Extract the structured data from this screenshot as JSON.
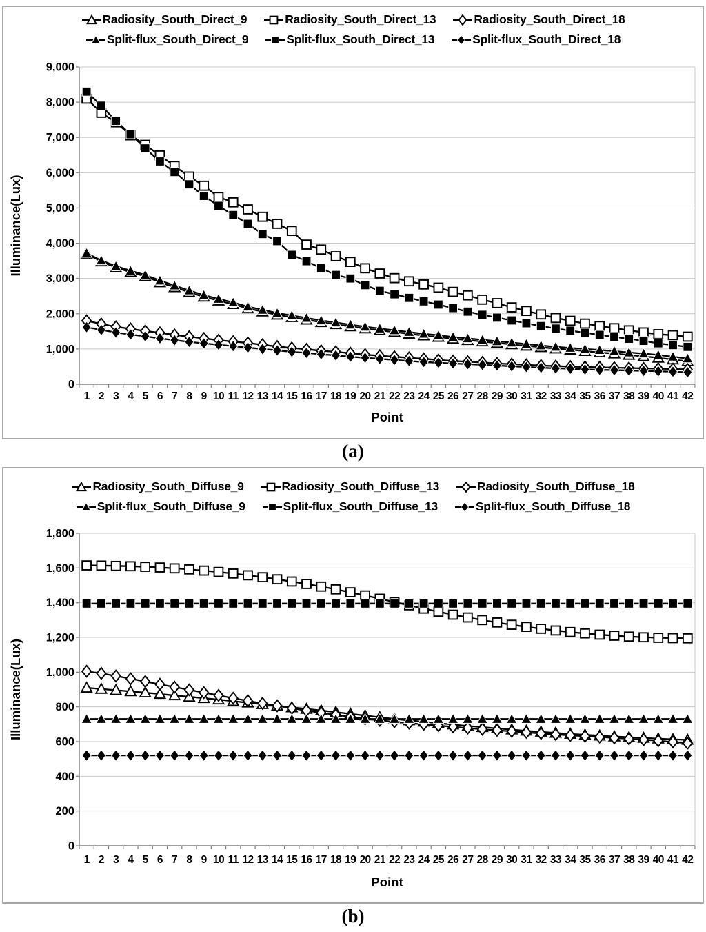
{
  "page": {
    "background": "#ffffff"
  },
  "colors": {
    "series_line": "#000000",
    "grid": "#c8c8c8",
    "axis": "#808080",
    "panel_border": "#a8a8a8",
    "text": "#000000",
    "marker_open_fill": "#ffffff",
    "marker_filled_fill": "#000000"
  },
  "chart_data": [
    {
      "id": "a",
      "caption": "(a)",
      "type": "line",
      "xlabel": "Point",
      "ylabel": "Illuminance(Lux)",
      "ylim": [
        0,
        9000
      ],
      "ytick_step": 1000,
      "ytick_labels": [
        "0",
        "1,000",
        "2,000",
        "3,000",
        "4,000",
        "5,000",
        "6,000",
        "7,000",
        "8,000",
        "9,000"
      ],
      "x_labels": [
        "1",
        "2",
        "3",
        "4",
        "5",
        "6",
        "7",
        "8",
        "9",
        "10",
        "11",
        "12",
        "13",
        "14",
        "15",
        "16",
        "17",
        "18",
        "19",
        "20",
        "21",
        "22",
        "23",
        "24",
        "25",
        "26",
        "27",
        "28",
        "29",
        "30",
        "31",
        "32",
        "33",
        "34",
        "35",
        "36",
        "37",
        "38",
        "39",
        "40",
        "41",
        "42"
      ],
      "grid": "horizontal",
      "legend_position": "top",
      "series": [
        {
          "name": "Radiosity_South_Direct_9",
          "marker": "triangle-open",
          "values": [
            3700,
            3480,
            3310,
            3180,
            3060,
            2890,
            2750,
            2610,
            2480,
            2370,
            2270,
            2150,
            2060,
            1970,
            1900,
            1830,
            1760,
            1700,
            1640,
            1580,
            1530,
            1480,
            1430,
            1380,
            1340,
            1290,
            1250,
            1210,
            1170,
            1130,
            1090,
            1050,
            1010,
            980,
            940,
            900,
            870,
            830,
            790,
            750,
            700,
            650
          ]
        },
        {
          "name": "Radiosity_South_Direct_13",
          "marker": "square-open",
          "values": [
            8100,
            7700,
            7430,
            7060,
            6790,
            6490,
            6190,
            5890,
            5630,
            5310,
            5160,
            4960,
            4750,
            4550,
            4350,
            3960,
            3820,
            3630,
            3470,
            3290,
            3140,
            3010,
            2920,
            2830,
            2740,
            2620,
            2520,
            2400,
            2300,
            2180,
            2080,
            1980,
            1880,
            1800,
            1720,
            1650,
            1590,
            1530,
            1470,
            1420,
            1390,
            1350
          ]
        },
        {
          "name": "Radiosity_South_Direct_18",
          "marker": "diamond-open",
          "values": [
            1800,
            1710,
            1630,
            1570,
            1510,
            1460,
            1400,
            1350,
            1300,
            1250,
            1210,
            1170,
            1120,
            1070,
            1030,
            990,
            950,
            920,
            880,
            840,
            810,
            780,
            750,
            720,
            690,
            660,
            640,
            620,
            590,
            570,
            550,
            530,
            515,
            500,
            490,
            480,
            470,
            460,
            450,
            440,
            430,
            420
          ]
        },
        {
          "name": "Split-flux_South_Direct_9",
          "marker": "triangle-filled",
          "values": [
            3720,
            3510,
            3350,
            3220,
            3100,
            2940,
            2800,
            2660,
            2530,
            2420,
            2320,
            2200,
            2110,
            2020,
            1950,
            1880,
            1810,
            1750,
            1690,
            1630,
            1580,
            1530,
            1480,
            1430,
            1390,
            1340,
            1300,
            1260,
            1220,
            1180,
            1140,
            1100,
            1060,
            1030,
            1000,
            970,
            940,
            900,
            870,
            830,
            780,
            730
          ]
        },
        {
          "name": "Split-flux_South_Direct_13",
          "marker": "square-filled",
          "values": [
            8300,
            7900,
            7470,
            7090,
            6690,
            6320,
            6020,
            5670,
            5340,
            5060,
            4800,
            4550,
            4260,
            4060,
            3670,
            3490,
            3290,
            3100,
            3000,
            2810,
            2650,
            2550,
            2450,
            2350,
            2260,
            2160,
            2060,
            1970,
            1890,
            1810,
            1730,
            1650,
            1580,
            1520,
            1460,
            1400,
            1340,
            1290,
            1230,
            1160,
            1110,
            1060
          ]
        },
        {
          "name": "Split-flux_South_Direct_18",
          "marker": "diamond-filled",
          "values": [
            1620,
            1540,
            1470,
            1410,
            1360,
            1300,
            1250,
            1200,
            1160,
            1120,
            1080,
            1040,
            1000,
            960,
            920,
            890,
            850,
            820,
            780,
            750,
            720,
            690,
            660,
            630,
            610,
            590,
            570,
            550,
            530,
            510,
            490,
            470,
            450,
            440,
            420,
            410,
            400,
            390,
            380,
            370,
            355,
            340
          ]
        }
      ]
    },
    {
      "id": "b",
      "caption": "(b)",
      "type": "line",
      "xlabel": "Point",
      "ylabel": "Illuminance(Lux)",
      "ylim": [
        0,
        1800
      ],
      "ytick_step": 200,
      "ytick_labels": [
        "0",
        "200",
        "400",
        "600",
        "800",
        "1,000",
        "1,200",
        "1,400",
        "1,600",
        "1,800"
      ],
      "x_labels": [
        "1",
        "2",
        "3",
        "4",
        "5",
        "6",
        "7",
        "8",
        "9",
        "10",
        "11",
        "12",
        "13",
        "14",
        "15",
        "16",
        "17",
        "18",
        "19",
        "20",
        "21",
        "22",
        "23",
        "24",
        "25",
        "26",
        "27",
        "28",
        "29",
        "30",
        "31",
        "32",
        "33",
        "34",
        "35",
        "36",
        "37",
        "38",
        "39",
        "40",
        "41",
        "42"
      ],
      "grid": "horizontal",
      "legend_position": "top",
      "series": [
        {
          "name": "Radiosity_South_Diffuse_9",
          "marker": "triangle-open",
          "values": [
            910,
            903,
            896,
            889,
            882,
            874,
            866,
            858,
            850,
            842,
            833,
            824,
            815,
            806,
            797,
            788,
            779,
            770,
            760,
            750,
            740,
            730,
            722,
            714,
            706,
            698,
            690,
            683,
            676,
            669,
            662,
            656,
            650,
            644,
            639,
            634,
            629,
            625,
            621,
            617,
            613,
            610
          ]
        },
        {
          "name": "Radiosity_South_Diffuse_13",
          "marker": "square-open",
          "values": [
            1615,
            1614,
            1612,
            1610,
            1607,
            1603,
            1598,
            1592,
            1585,
            1577,
            1568,
            1558,
            1547,
            1535,
            1522,
            1508,
            1493,
            1477,
            1460,
            1442,
            1423,
            1404,
            1385,
            1366,
            1348,
            1331,
            1315,
            1300,
            1286,
            1273,
            1261,
            1250,
            1240,
            1231,
            1223,
            1216,
            1210,
            1205,
            1201,
            1198,
            1196,
            1195
          ]
        },
        {
          "name": "Radiosity_South_Diffuse_18",
          "marker": "diamond-open",
          "values": [
            1005,
            993,
            978,
            962,
            946,
            930,
            914,
            898,
            882,
            866,
            850,
            835,
            820,
            806,
            792,
            779,
            766,
            754,
            742,
            731,
            722,
            714,
            706,
            699,
            692,
            685,
            678,
            671,
            665,
            659,
            653,
            647,
            641,
            636,
            631,
            626,
            621,
            616,
            611,
            605,
            598,
            590
          ]
        },
        {
          "name": "Split-flux_South_Diffuse_9",
          "marker": "triangle-filled",
          "values": [
            730,
            730,
            730,
            730,
            730,
            730,
            730,
            730,
            730,
            730,
            730,
            730,
            730,
            730,
            730,
            730,
            730,
            730,
            730,
            730,
            730,
            730,
            730,
            730,
            730,
            730,
            730,
            730,
            730,
            730,
            730,
            730,
            730,
            730,
            730,
            730,
            730,
            730,
            730,
            730,
            730,
            730
          ]
        },
        {
          "name": "Split-flux_South_Diffuse_13",
          "marker": "square-filled",
          "values": [
            1395,
            1395,
            1395,
            1395,
            1395,
            1395,
            1395,
            1395,
            1395,
            1395,
            1395,
            1395,
            1395,
            1395,
            1395,
            1395,
            1395,
            1395,
            1395,
            1395,
            1395,
            1395,
            1395,
            1395,
            1395,
            1395,
            1395,
            1395,
            1395,
            1395,
            1395,
            1395,
            1395,
            1395,
            1395,
            1395,
            1395,
            1395,
            1395,
            1395,
            1395,
            1395
          ]
        },
        {
          "name": "Split-flux_South_Diffuse_18",
          "marker": "diamond-filled",
          "values": [
            520,
            520,
            520,
            520,
            520,
            520,
            520,
            520,
            520,
            520,
            520,
            520,
            520,
            520,
            520,
            520,
            520,
            520,
            520,
            520,
            520,
            520,
            520,
            520,
            520,
            520,
            520,
            520,
            520,
            520,
            520,
            520,
            520,
            520,
            520,
            520,
            520,
            520,
            520,
            520,
            520,
            520
          ]
        }
      ]
    }
  ]
}
